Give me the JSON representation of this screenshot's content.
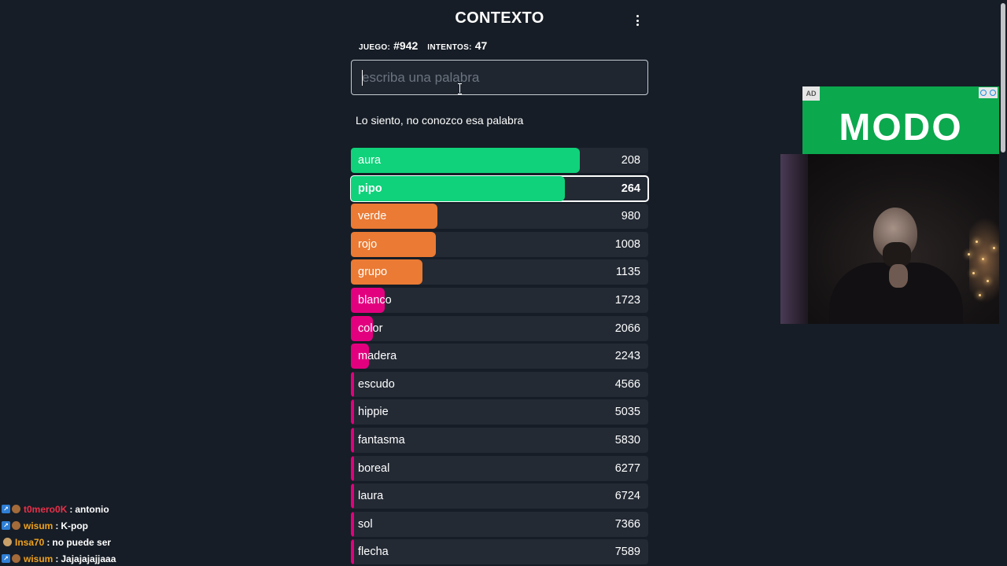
{
  "header": {
    "title": "CONTEXTO",
    "menu_icon": "kebab-menu-icon"
  },
  "stats": {
    "game_label": "JUEGO:",
    "game_value": "#942",
    "attempts_label": "INTENTOS:",
    "attempts_value": "47"
  },
  "search": {
    "placeholder": "escriba una palabra",
    "value": ""
  },
  "message": "Lo siento, no conozco esa palabra",
  "colors": {
    "green": "#10d27a",
    "orange": "#ea7a34",
    "pink": "#e3007f",
    "row_bg": "#232a34",
    "page_bg": "#161d26"
  },
  "guesses": [
    {
      "word": "aura",
      "rank": "208",
      "color": "green",
      "fill_fraction": 0.77,
      "selected": false
    },
    {
      "word": "pipo",
      "rank": "264",
      "color": "green",
      "fill_fraction": 0.72,
      "selected": true
    },
    {
      "word": "verde",
      "rank": "980",
      "color": "orange",
      "fill_fraction": 0.29,
      "selected": false
    },
    {
      "word": "rojo",
      "rank": "1008",
      "color": "orange",
      "fill_fraction": 0.285,
      "selected": false
    },
    {
      "word": "grupo",
      "rank": "1135",
      "color": "orange",
      "fill_fraction": 0.24,
      "selected": false
    },
    {
      "word": "blanco",
      "rank": "1723",
      "color": "pink",
      "fill_fraction": 0.115,
      "selected": false
    },
    {
      "word": "color",
      "rank": "2066",
      "color": "pink",
      "fill_fraction": 0.075,
      "selected": false
    },
    {
      "word": "madera",
      "rank": "2243",
      "color": "pink",
      "fill_fraction": 0.06,
      "selected": false
    },
    {
      "word": "escudo",
      "rank": "4566",
      "color": "pink",
      "fill_fraction": 0.01,
      "selected": false
    },
    {
      "word": "hippie",
      "rank": "5035",
      "color": "pink",
      "fill_fraction": 0.01,
      "selected": false
    },
    {
      "word": "fantasma",
      "rank": "5830",
      "color": "pink",
      "fill_fraction": 0.01,
      "selected": false
    },
    {
      "word": "boreal",
      "rank": "6277",
      "color": "pink",
      "fill_fraction": 0.01,
      "selected": false
    },
    {
      "word": "laura",
      "rank": "6724",
      "color": "pink",
      "fill_fraction": 0.01,
      "selected": false
    },
    {
      "word": "sol",
      "rank": "7366",
      "color": "pink",
      "fill_fraction": 0.01,
      "selected": false
    },
    {
      "word": "flecha",
      "rank": "7589",
      "color": "pink",
      "fill_fraction": 0.01,
      "selected": false
    }
  ],
  "ad": {
    "badge": "AD",
    "logo": "MODO",
    "bg": "#0ba84d"
  },
  "chat": [
    {
      "user": "t0mero0K",
      "user_color": "#e8304a",
      "message": "antonio",
      "badges": "prime"
    },
    {
      "user": "wisum",
      "user_color": "#f0a21e",
      "message": "K-pop",
      "badges": "prime"
    },
    {
      "user": "Insa70",
      "user_color": "#f0a21e",
      "message": "no puede ser",
      "badges": "cap"
    },
    {
      "user": "wisum",
      "user_color": "#f0a21e",
      "message": "Jajajajajjaaa",
      "badges": "prime"
    }
  ]
}
